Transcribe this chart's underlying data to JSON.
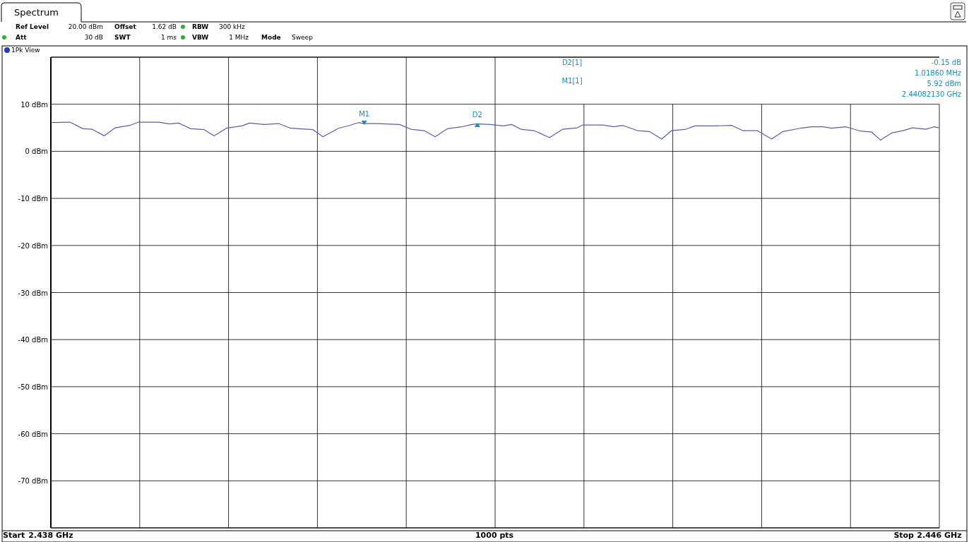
{
  "chart_data": {
    "type": "line",
    "xlim": [
      2.438,
      2.446
    ],
    "ylim": [
      -80,
      20
    ],
    "xticks": [
      {
        "value": 2.438,
        "label": "2.438 GHz"
      },
      {
        "value": 2.4388,
        "label": null
      },
      {
        "value": 2.4396,
        "label": null
      },
      {
        "value": 2.4404,
        "label": null
      },
      {
        "value": 2.4412,
        "label": null
      },
      {
        "value": 2.442,
        "label": null
      },
      {
        "value": 2.4428,
        "label": null
      },
      {
        "value": 2.4436,
        "label": null
      },
      {
        "value": 2.4444,
        "label": null
      },
      {
        "value": 2.4452,
        "label": null
      },
      {
        "value": 2.446,
        "label": "2.446 GHz"
      }
    ],
    "yticks": [
      {
        "value": 20,
        "label": null
      },
      {
        "value": 10,
        "label": "10 dBm"
      },
      {
        "value": 0,
        "label": "0 dBm"
      },
      {
        "value": -10,
        "label": "-10 dBm"
      },
      {
        "value": -20,
        "label": "-20 dBm"
      },
      {
        "value": -30,
        "label": "-30 dBm"
      },
      {
        "value": -40,
        "label": "-40 dBm"
      },
      {
        "value": -50,
        "label": "-50 dBm"
      },
      {
        "value": -60,
        "label": "-60 dBm"
      },
      {
        "value": -70,
        "label": "-70 dBm"
      },
      {
        "value": -80,
        "label": null
      }
    ],
    "grid": true,
    "xlabel": "1000 pts",
    "series": [
      {
        "color": "#5c5cae",
        "x": [
          2.43801,
          2.43817,
          2.43829,
          2.43837,
          2.43848,
          2.43858,
          2.43871,
          2.43879,
          2.43897,
          2.43907,
          2.43915,
          2.43926,
          2.43938,
          2.43947,
          2.43958,
          2.43972,
          2.43979,
          2.43992,
          2.44005,
          2.44016,
          2.44036,
          2.44045,
          2.44059,
          2.44069,
          2.44077,
          2.44082,
          2.44093,
          2.44114,
          2.44124,
          2.44136,
          2.44146,
          2.44157,
          2.4417,
          2.44179,
          2.44184,
          2.44196,
          2.44207,
          2.44215,
          2.44223,
          2.44235,
          2.44249,
          2.44261,
          2.44274,
          2.44279,
          2.44297,
          2.44307,
          2.44315,
          2.44328,
          2.44339,
          2.4435,
          2.44359,
          2.44372,
          2.4438,
          2.44397,
          2.44413,
          2.44423,
          2.44436,
          2.44449,
          2.44459,
          2.44475,
          2.44485,
          2.44495,
          2.44503,
          2.44516,
          2.44529,
          2.44539,
          2.44547,
          2.44557,
          2.44567,
          2.44576,
          2.44588,
          2.44595,
          2.446
        ],
        "values": [
          6.1,
          6.2,
          4.8,
          4.7,
          3.3,
          5.0,
          5.5,
          6.2,
          6.2,
          5.8,
          6.0,
          4.8,
          4.6,
          3.3,
          4.9,
          5.4,
          6.0,
          5.7,
          5.9,
          4.9,
          4.6,
          3.1,
          4.9,
          5.5,
          6.1,
          5.9,
          5.9,
          5.7,
          4.7,
          4.4,
          3.1,
          4.8,
          5.2,
          5.7,
          5.8,
          5.7,
          5.4,
          5.7,
          4.7,
          4.4,
          2.9,
          4.7,
          5.0,
          5.6,
          5.6,
          5.2,
          5.5,
          4.4,
          4.2,
          2.6,
          4.4,
          4.7,
          5.4,
          5.4,
          5.5,
          4.4,
          4.4,
          2.6,
          4.2,
          4.9,
          5.2,
          5.2,
          4.9,
          5.2,
          4.3,
          4.1,
          2.4,
          3.9,
          4.4,
          5.0,
          4.7,
          5.2,
          5.0
        ]
      }
    ],
    "annotations": [
      "Spectrum",
      "Ref Level",
      "20.00 dBm",
      "Offset",
      "1.62 dB",
      "RBW",
      "300 kHz",
      "Att",
      "30 dB",
      "SWT",
      "1 ms",
      "VBW",
      "1 MHz",
      "Mode",
      "Sweep",
      "1Pk View",
      "D2[1]",
      "-0.15 dB",
      "1.01860 MHz",
      "M1[1]",
      "5.92 dBm",
      "2.44082130 GHz",
      "Start",
      "Stop",
      {
        "text": "M1",
        "x": 2.4408213,
        "y": 5.92
      },
      {
        "text": "D2",
        "x": 2.4418399,
        "y": 5.77
      }
    ]
  }
}
